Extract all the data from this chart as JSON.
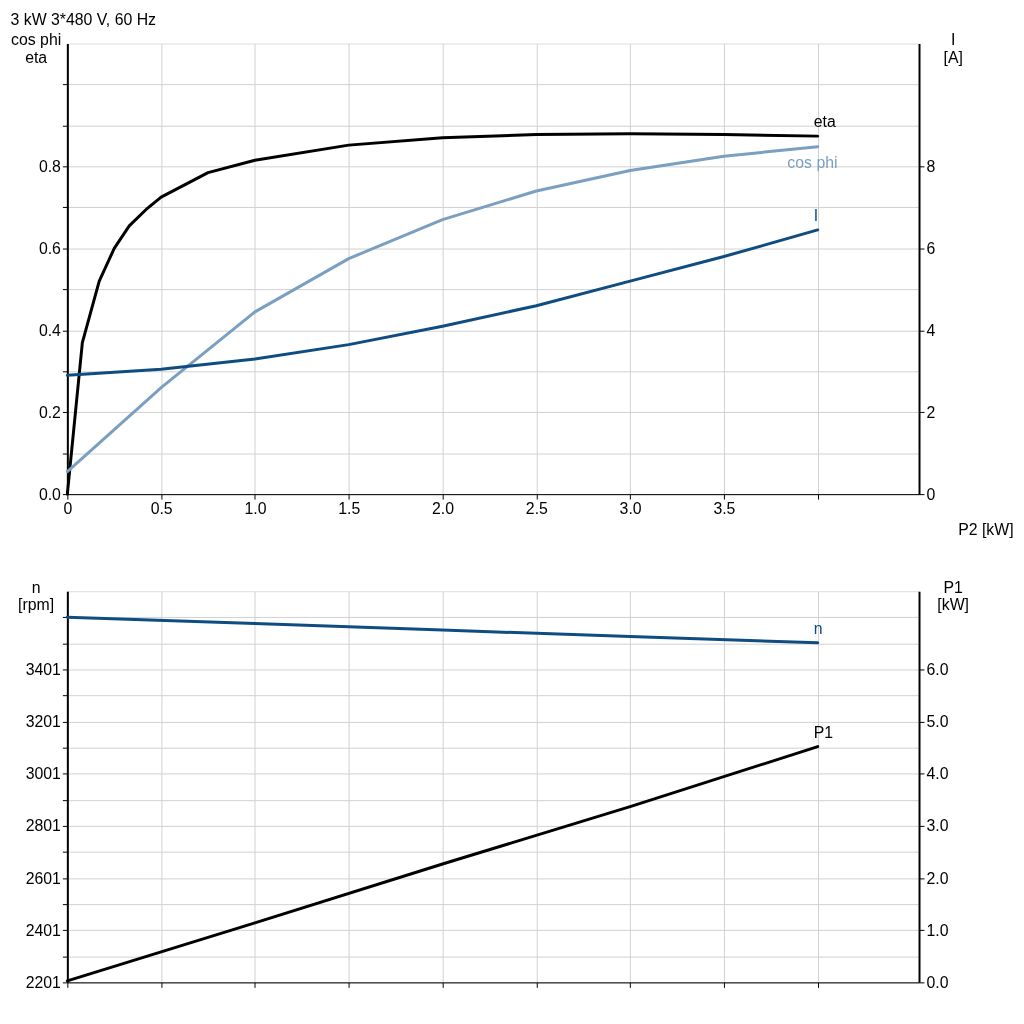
{
  "chart_data": [
    {
      "type": "line",
      "title": "3 kW   3*480 V, 60 Hz",
      "xlabel": "P2 [kW]",
      "ylabel": "cos phi\neta",
      "y2label": "I\n[A]",
      "xlim": [
        0,
        4.54
      ],
      "xticks": [
        {
          "value": 0,
          "label": "0"
        },
        0.5,
        {
          "value": 1,
          "label": "1.0"
        },
        1.5,
        {
          "value": 2,
          "label": "2.0"
        },
        2.5,
        {
          "value": 3,
          "label": "3.0"
        },
        3.5,
        {
          "value": 4,
          "label": null
        }
      ],
      "ylim": [
        0,
        1.1
      ],
      "yticks": [
        {
          "value": 0,
          "label": "0.0"
        },
        {
          "value": 0.1,
          "label": null
        },
        0.2,
        {
          "value": 0.3,
          "label": null
        },
        0.4,
        {
          "value": 0.5,
          "label": null
        },
        0.6,
        {
          "value": 0.7,
          "label": null
        },
        0.8,
        {
          "value": 0.9,
          "label": null
        },
        {
          "value": 1.0,
          "label": null
        }
      ],
      "y2lim": [
        0,
        11
      ],
      "y2ticks": [
        0,
        2,
        4,
        6,
        8
      ],
      "grid": true,
      "legend": false,
      "marker": "none",
      "line_style": "solid",
      "series": [
        {
          "name": "eta",
          "color": "#000000",
          "x": [
            0,
            0.08,
            0.17,
            0.25,
            0.33,
            0.42,
            0.5,
            0.75,
            1.0,
            1.5,
            2.0,
            2.5,
            3.0,
            3.5,
            4.0
          ],
          "values": [
            0,
            0.37,
            0.52,
            0.6,
            0.655,
            0.695,
            0.725,
            0.785,
            0.815,
            0.852,
            0.87,
            0.878,
            0.88,
            0.878,
            0.874
          ]
        },
        {
          "name": "cos phi",
          "color": "#7a9fc0",
          "x": [
            0,
            0.5,
            1.0,
            1.5,
            2.0,
            2.5,
            3.0,
            3.5,
            4.0
          ],
          "values": [
            0.055,
            0.26,
            0.445,
            0.575,
            0.67,
            0.74,
            0.79,
            0.825,
            0.848
          ]
        },
        {
          "name": "I",
          "color": "#0f4c81",
          "axis": "y2",
          "x": [
            0,
            0.5,
            1.0,
            1.5,
            2.0,
            2.5,
            3.0,
            3.5,
            4.0
          ],
          "values": [
            2.9,
            3.05,
            3.3,
            3.65,
            4.1,
            4.6,
            5.2,
            5.8,
            6.45
          ]
        }
      ]
    },
    {
      "type": "line",
      "ylabel": "n\n[rpm]",
      "y2label": "P1\n[kW]",
      "tick_labels": "y",
      "xlim": [
        0,
        4.54
      ],
      "xticks": [
        0,
        0.5,
        1,
        1.5,
        2,
        2.5,
        3,
        3.5,
        4
      ],
      "ylim": [
        2201,
        3701
      ],
      "yticks": [
        2201,
        {
          "value": 2301,
          "label": null
        },
        2401,
        {
          "value": 2501,
          "label": null
        },
        2601,
        {
          "value": 2701,
          "label": null
        },
        2801,
        {
          "value": 2901,
          "label": null
        },
        3001,
        {
          "value": 3101,
          "label": null
        },
        3201,
        {
          "value": 3301,
          "label": null
        },
        3401,
        {
          "value": 3501,
          "label": null
        },
        {
          "value": 3601,
          "label": null
        }
      ],
      "y2lim": [
        0,
        7.5
      ],
      "y2ticks": [
        {
          "value": 0,
          "label": "0.0"
        },
        {
          "value": 1,
          "label": "1.0"
        },
        {
          "value": 2,
          "label": "2.0"
        },
        {
          "value": 3,
          "label": "3.0"
        },
        {
          "value": 4,
          "label": "4.0"
        },
        {
          "value": 5,
          "label": "5.0"
        },
        {
          "value": 6,
          "label": "6.0"
        }
      ],
      "grid": true,
      "legend": false,
      "marker": "none",
      "line_style": "solid",
      "series": [
        {
          "name": "n",
          "color": "#0f4c81",
          "x": [
            0,
            1,
            2,
            3,
            4
          ],
          "values": [
            3601,
            3577,
            3552,
            3527,
            3503
          ]
        },
        {
          "name": "P1",
          "color": "#000000",
          "axis": "y2",
          "x": [
            0,
            1,
            2,
            3,
            4
          ],
          "values": [
            0.03,
            1.14,
            2.27,
            3.37,
            4.52
          ]
        }
      ]
    }
  ]
}
